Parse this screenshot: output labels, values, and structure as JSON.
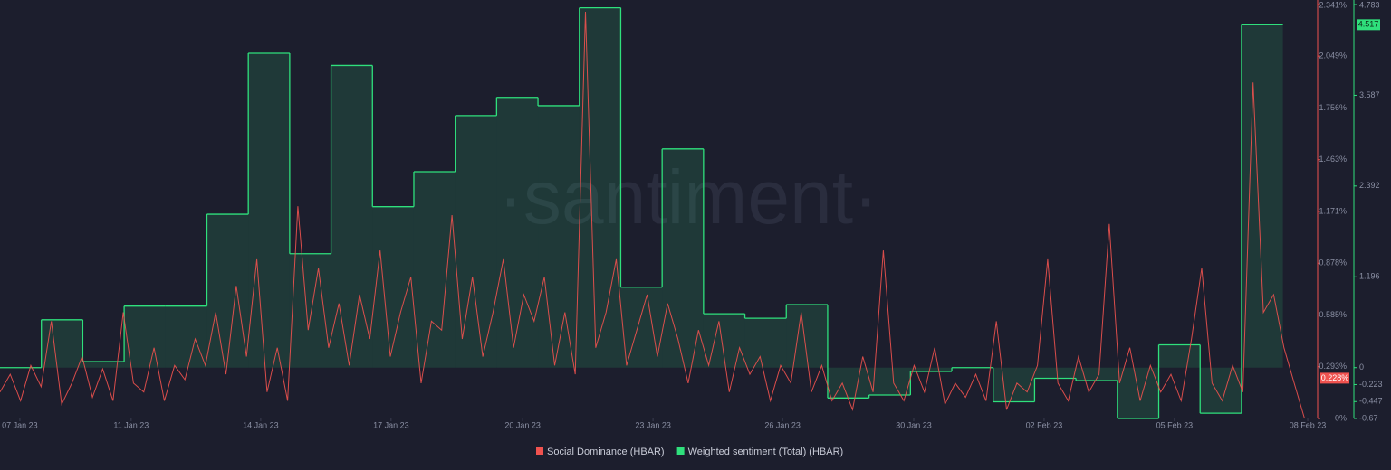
{
  "chart_data": {
    "type": "line",
    "watermark": "·santiment·",
    "xlim": [
      0,
      31.84
    ],
    "xticks": [
      {
        "value": 0.48,
        "label": "07 Jan 23"
      },
      {
        "value": 3.17,
        "label": "11 Jan 23"
      },
      {
        "value": 6.3,
        "label": "14 Jan 23"
      },
      {
        "value": 9.45,
        "label": "17 Jan 23"
      },
      {
        "value": 12.63,
        "label": "20 Jan 23"
      },
      {
        "value": 15.78,
        "label": "23 Jan 23"
      },
      {
        "value": 18.91,
        "label": "26 Jan 23"
      },
      {
        "value": 22.08,
        "label": "30 Jan 23"
      },
      {
        "value": 25.23,
        "label": "02 Feb 23"
      },
      {
        "value": 28.38,
        "label": "05 Feb 23"
      },
      {
        "value": 31.6,
        "label": "08 Feb 23"
      }
    ],
    "ylim": [
      0,
      2.341
    ],
    "yticks": [
      {
        "value": 0,
        "label": "0%"
      },
      {
        "value": 0.293,
        "label": "0.293%"
      },
      {
        "value": 0.585,
        "label": "0.585%"
      },
      {
        "value": 0.878,
        "label": "0.878%"
      },
      {
        "value": 1.171,
        "label": "1.171%"
      },
      {
        "value": 1.463,
        "label": "1.463%"
      },
      {
        "value": 1.756,
        "label": "1.756%"
      },
      {
        "value": 2.049,
        "label": "2.049%"
      },
      {
        "value": 2.341,
        "label": "2.341%"
      }
    ],
    "y2lim": [
      -0.67,
      4.783
    ],
    "y2ticks": [
      -0.67,
      -0.447,
      -0.223,
      0,
      1.196,
      2.392,
      3.587,
      4.783
    ],
    "series": [
      {
        "name": "Social Dominance (HBAR)",
        "color": "#f0524f",
        "style": "line",
        "badge": {
          "value": 0.228,
          "label": "0.228%"
        },
        "values": [
          0.15,
          0.25,
          0.1,
          0.3,
          0.18,
          0.55,
          0.08,
          0.2,
          0.35,
          0.12,
          0.28,
          0.1,
          0.6,
          0.2,
          0.15,
          0.4,
          0.1,
          0.3,
          0.22,
          0.45,
          0.3,
          0.6,
          0.25,
          0.75,
          0.35,
          0.9,
          0.15,
          0.4,
          0.1,
          1.2,
          0.5,
          0.85,
          0.4,
          0.65,
          0.3,
          0.7,
          0.45,
          0.95,
          0.35,
          0.6,
          0.8,
          0.2,
          0.55,
          0.5,
          1.15,
          0.45,
          0.8,
          0.35,
          0.6,
          0.9,
          0.4,
          0.7,
          0.55,
          0.8,
          0.3,
          0.6,
          0.25,
          2.3,
          0.4,
          0.6,
          0.9,
          0.3,
          0.5,
          0.7,
          0.35,
          0.65,
          0.45,
          0.2,
          0.5,
          0.3,
          0.55,
          0.15,
          0.4,
          0.25,
          0.35,
          0.1,
          0.3,
          0.2,
          0.6,
          0.15,
          0.3,
          0.1,
          0.2,
          0.05,
          0.35,
          0.15,
          0.95,
          0.2,
          0.1,
          0.3,
          0.15,
          0.4,
          0.08,
          0.2,
          0.12,
          0.25,
          0.1,
          0.55,
          0.05,
          0.2,
          0.15,
          0.3,
          0.9,
          0.2,
          0.1,
          0.35,
          0.15,
          0.25,
          1.1,
          0.2,
          0.4,
          0.1,
          0.3,
          0.15,
          0.25,
          0.1,
          0.45,
          0.85,
          0.2,
          0.1,
          0.3,
          0.15,
          1.9,
          0.6,
          0.7,
          0.4,
          0.2,
          0
        ]
      },
      {
        "name": "Weighted sentiment (Total) (HBAR)",
        "color": "#2fe07c",
        "style": "step-area",
        "axis": "y2",
        "values": [
          0,
          0.63,
          0.08,
          0.81,
          0.81,
          2.02,
          4.14,
          1.5,
          3.98,
          2.12,
          2.58,
          3.32,
          3.56,
          3.45,
          4.74,
          1.06,
          2.88,
          0.71,
          0.65,
          0.83,
          -0.4,
          -0.36,
          -0.05,
          0,
          -0.45,
          -0.14,
          -0.17,
          -0.67,
          0.3,
          -0.6,
          4.517
        ]
      }
    ]
  }
}
